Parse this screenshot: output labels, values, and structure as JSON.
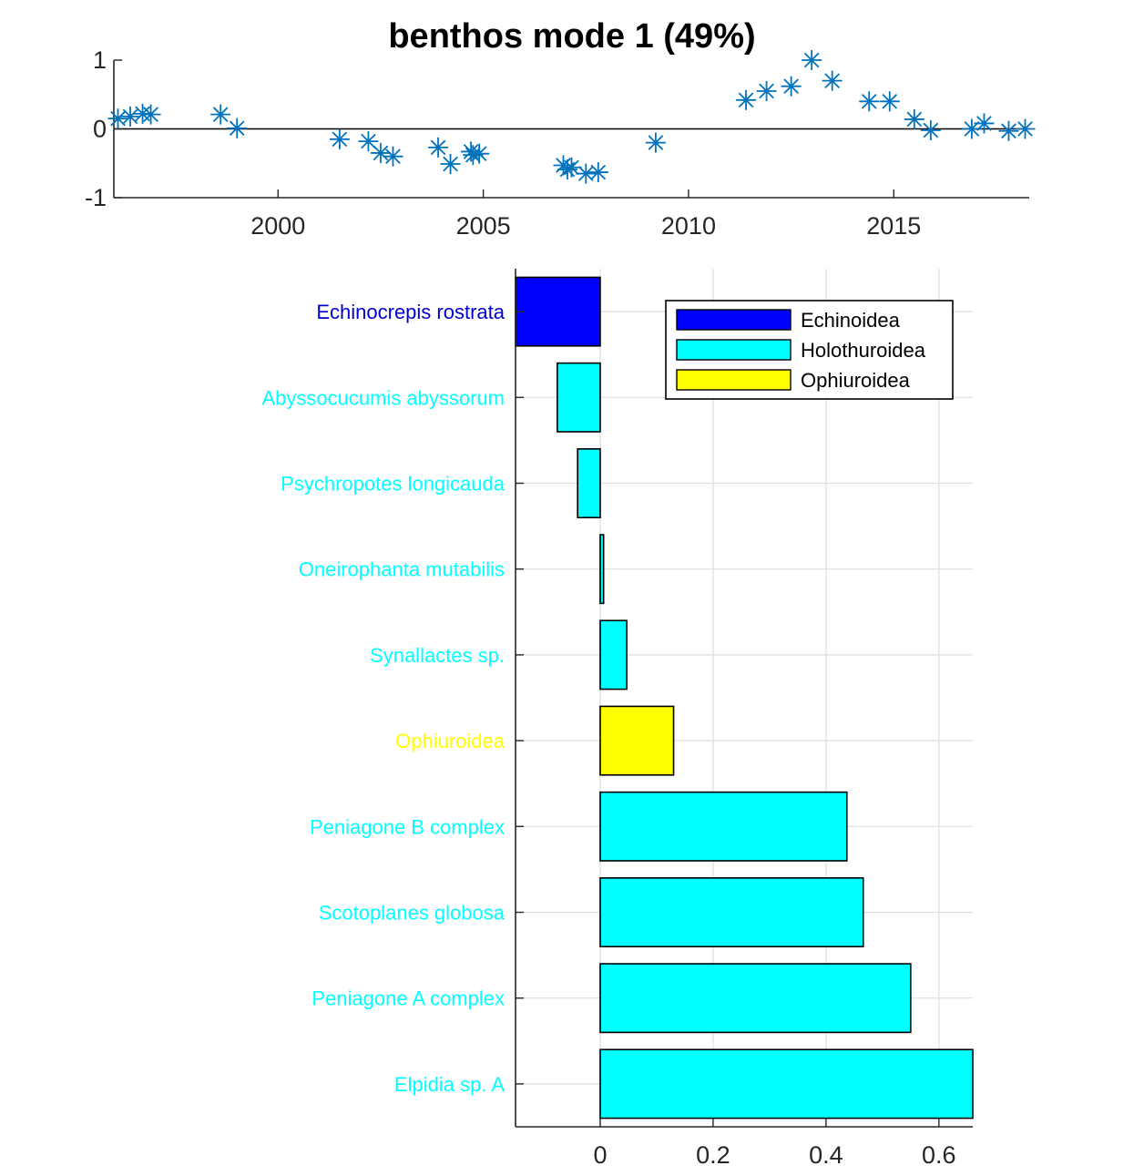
{
  "chart_data": [
    {
      "type": "scatter",
      "title": "benthos mode 1 (49%)",
      "xlabel": "",
      "ylabel": "",
      "xlim": [
        1996.0,
        2018.3
      ],
      "ylim": [
        -1,
        1
      ],
      "xticks": [
        2000,
        2005,
        2010,
        2015
      ],
      "yticks": [
        -1,
        0,
        1
      ],
      "zero_line": true,
      "grid": false,
      "marker": "asterisk",
      "color": "#0072bd",
      "points": [
        {
          "x": 1996.1,
          "y": 0.15
        },
        {
          "x": 1996.4,
          "y": 0.18
        },
        {
          "x": 1996.7,
          "y": 0.22
        },
        {
          "x": 1996.9,
          "y": 0.21
        },
        {
          "x": 1998.6,
          "y": 0.21
        },
        {
          "x": 1999.0,
          "y": 0.01
        },
        {
          "x": 2001.5,
          "y": -0.15
        },
        {
          "x": 2002.2,
          "y": -0.18
        },
        {
          "x": 2002.5,
          "y": -0.35
        },
        {
          "x": 2002.8,
          "y": -0.4
        },
        {
          "x": 2003.9,
          "y": -0.27
        },
        {
          "x": 2004.2,
          "y": -0.51
        },
        {
          "x": 2004.7,
          "y": -0.33
        },
        {
          "x": 2004.75,
          "y": -0.38
        },
        {
          "x": 2004.9,
          "y": -0.36
        },
        {
          "x": 2006.95,
          "y": -0.53
        },
        {
          "x": 2007.05,
          "y": -0.59
        },
        {
          "x": 2007.15,
          "y": -0.56
        },
        {
          "x": 2007.5,
          "y": -0.65
        },
        {
          "x": 2007.8,
          "y": -0.63
        },
        {
          "x": 2009.2,
          "y": -0.2
        },
        {
          "x": 2011.4,
          "y": 0.42
        },
        {
          "x": 2011.9,
          "y": 0.55
        },
        {
          "x": 2012.5,
          "y": 0.62
        },
        {
          "x": 2013.0,
          "y": 1.0
        },
        {
          "x": 2013.5,
          "y": 0.7
        },
        {
          "x": 2014.4,
          "y": 0.4
        },
        {
          "x": 2014.9,
          "y": 0.4
        },
        {
          "x": 2015.5,
          "y": 0.14
        },
        {
          "x": 2015.9,
          "y": -0.02
        },
        {
          "x": 2016.9,
          "y": 0.0
        },
        {
          "x": 2017.2,
          "y": 0.08
        },
        {
          "x": 2017.8,
          "y": -0.03
        },
        {
          "x": 2018.2,
          "y": 0.0
        }
      ]
    },
    {
      "type": "bar",
      "orientation": "horizontal",
      "title": "",
      "xlabel": "",
      "ylabel": "",
      "xlim": [
        -0.15,
        0.66
      ],
      "xticks": [
        0,
        0.2,
        0.4,
        0.6
      ],
      "tick_labels": [
        "0",
        "0.2",
        "0.4",
        "0.6"
      ],
      "grid": true,
      "legend": {
        "placement": "top-right",
        "entries": [
          {
            "name": "Echinoidea",
            "color": "#0000ff"
          },
          {
            "name": "Holothuroidea",
            "color": "#00ffff"
          },
          {
            "name": "Ophiuroidea",
            "color": "#ffff00"
          }
        ]
      },
      "bars": [
        {
          "label": "Echinocrepis rostrata",
          "value": -0.15,
          "group": "Echinoidea",
          "color": "#0000ff",
          "label_color": "#0000cd"
        },
        {
          "label": "Abyssocucumis abyssorum",
          "value": -0.076,
          "group": "Holothuroidea",
          "color": "#00ffff",
          "label_color": "#00ffff"
        },
        {
          "label": "Psychropotes longicauda",
          "value": -0.04,
          "group": "Holothuroidea",
          "color": "#00ffff",
          "label_color": "#00ffff"
        },
        {
          "label": "Oneirophanta mutabilis",
          "value": 0.006,
          "group": "Holothuroidea",
          "color": "#00ffff",
          "label_color": "#00ffff"
        },
        {
          "label": "Synallactes sp.",
          "value": 0.047,
          "group": "Holothuroidea",
          "color": "#00ffff",
          "label_color": "#00ffff"
        },
        {
          "label": "Ophiuroidea",
          "value": 0.13,
          "group": "Ophiuroidea",
          "color": "#ffff00",
          "label_color": "#ffff00"
        },
        {
          "label": "Peniagone B complex",
          "value": 0.437,
          "group": "Holothuroidea",
          "color": "#00ffff",
          "label_color": "#00ffff"
        },
        {
          "label": "Scotoplanes globosa",
          "value": 0.466,
          "group": "Holothuroidea",
          "color": "#00ffff",
          "label_color": "#00ffff"
        },
        {
          "label": "Peniagone A complex",
          "value": 0.55,
          "group": "Holothuroidea",
          "color": "#00ffff",
          "label_color": "#00ffff"
        },
        {
          "label": "Elpidia sp. A",
          "value": 0.66,
          "group": "Holothuroidea",
          "color": "#00ffff",
          "label_color": "#00ffff"
        }
      ]
    }
  ]
}
